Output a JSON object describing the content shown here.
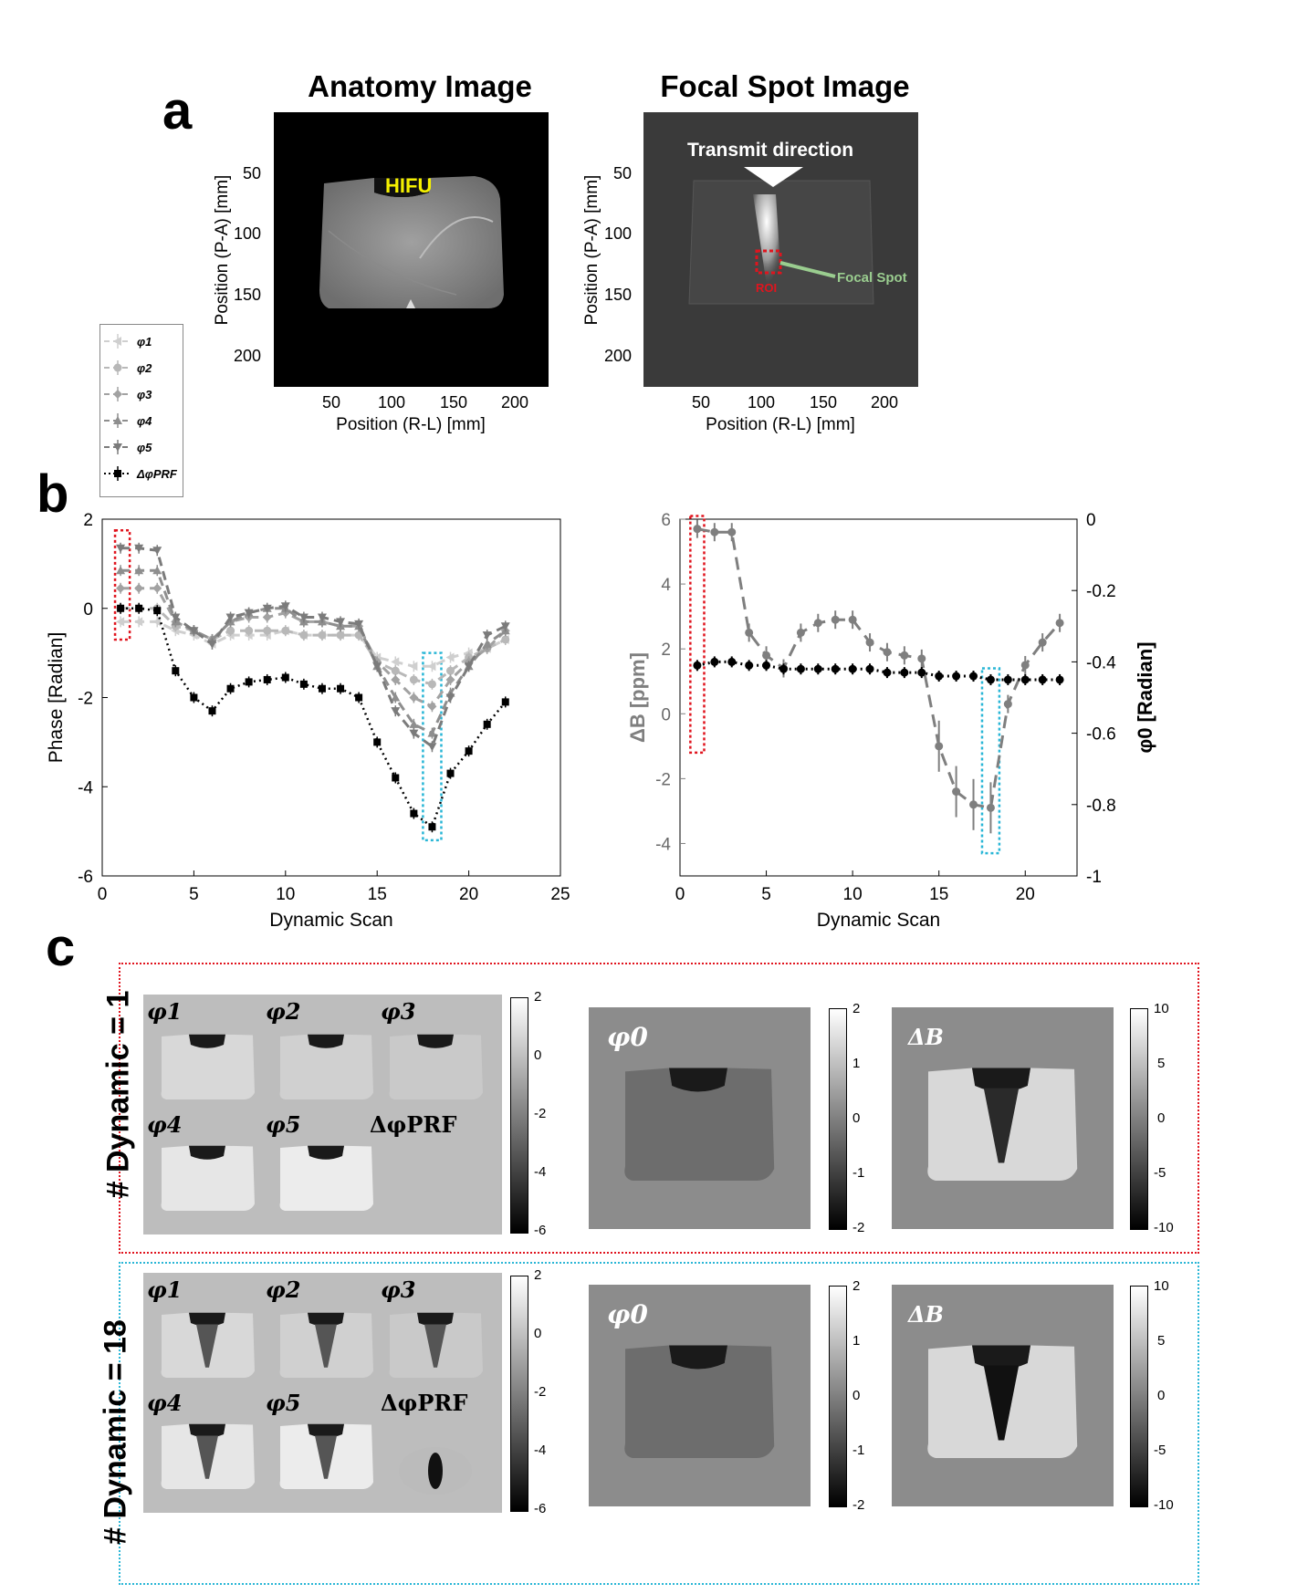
{
  "panels": {
    "a": "a",
    "b": "b",
    "c": "c"
  },
  "panel_a": {
    "left": {
      "title": "Anatomy Image",
      "overlay_label": "HIFU",
      "xlabel": "Position (R-L) [mm]",
      "ylabel": "Position (P-A) [mm]",
      "xticks": [
        "50",
        "100",
        "150",
        "200"
      ],
      "yticks": [
        "50",
        "100",
        "150",
        "200"
      ]
    },
    "right": {
      "title": "Focal Spot Image",
      "overlay_label": "Transmit direction",
      "roi_label": "ROI",
      "focal_label": "Focal Spot",
      "xlabel": "Position (R-L) [mm]",
      "ylabel": "Position (P-A) [mm]",
      "xticks": [
        "50",
        "100",
        "150",
        "200"
      ],
      "yticks": [
        "50",
        "100",
        "150",
        "200"
      ]
    },
    "colors": {
      "roi": "#e0141e",
      "focal": "#9acd8f",
      "hifu": "#f5f000"
    }
  },
  "legend": {
    "entries": [
      "φ1",
      "φ2",
      "φ3",
      "φ4",
      "φ5",
      "ΔφPRF"
    ]
  },
  "chart_data": [
    {
      "type": "line",
      "xlabel": "Dynamic Scan",
      "ylabel": "Phase [Radian]",
      "xlim": [
        0,
        25
      ],
      "ylim": [
        -6,
        2
      ],
      "xticks": [
        "0",
        "5",
        "10",
        "15",
        "20",
        "25"
      ],
      "yticks": [
        "2",
        "0",
        "-2",
        "-4",
        "-6"
      ],
      "x": [
        1,
        2,
        3,
        4,
        5,
        6,
        7,
        8,
        9,
        10,
        11,
        12,
        13,
        14,
        15,
        16,
        17,
        18,
        19,
        20,
        21,
        22
      ],
      "series": [
        {
          "name": "φ1",
          "color": "#cfcfcf",
          "values": [
            -0.3,
            -0.3,
            -0.3,
            -0.5,
            -0.6,
            -0.8,
            -0.6,
            -0.6,
            -0.6,
            -0.5,
            -0.6,
            -0.6,
            -0.6,
            -0.6,
            -1.1,
            -1.2,
            -1.3,
            -1.3,
            -1.1,
            -1.0,
            -0.9,
            -0.7
          ]
        },
        {
          "name": "φ2",
          "color": "#b8b8b8",
          "values": [
            0.0,
            0.0,
            0.0,
            -0.4,
            -0.5,
            -0.7,
            -0.5,
            -0.5,
            -0.5,
            -0.5,
            -0.6,
            -0.6,
            -0.6,
            -0.6,
            -1.2,
            -1.4,
            -1.6,
            -1.7,
            -1.4,
            -1.1,
            -0.9,
            -0.7
          ]
        },
        {
          "name": "φ3",
          "color": "#a2a2a2",
          "values": [
            0.45,
            0.45,
            0.45,
            -0.3,
            -0.5,
            -0.7,
            -0.3,
            -0.2,
            -0.2,
            -0.1,
            -0.3,
            -0.3,
            -0.4,
            -0.4,
            -1.2,
            -1.6,
            -2.0,
            -2.2,
            -1.6,
            -1.2,
            -0.9,
            -0.5
          ]
        },
        {
          "name": "φ4",
          "color": "#8e8e8e",
          "values": [
            0.85,
            0.85,
            0.85,
            -0.3,
            -0.5,
            -0.7,
            -0.3,
            -0.1,
            0.0,
            0.0,
            -0.3,
            -0.3,
            -0.4,
            -0.4,
            -1.3,
            -2.0,
            -2.6,
            -2.8,
            -1.9,
            -1.3,
            -0.8,
            -0.5
          ]
        },
        {
          "name": "φ5",
          "color": "#7b7b7b",
          "values": [
            1.35,
            1.35,
            1.3,
            -0.2,
            -0.5,
            -0.8,
            -0.2,
            -0.1,
            0.0,
            0.05,
            -0.2,
            -0.2,
            -0.3,
            -0.35,
            -1.3,
            -2.3,
            -2.8,
            -3.1,
            -2.0,
            -1.3,
            -0.6,
            -0.4
          ]
        },
        {
          "name": "ΔφPRF",
          "color": "#000000",
          "values": [
            0.0,
            0.0,
            -0.05,
            -1.4,
            -2.0,
            -2.3,
            -1.8,
            -1.65,
            -1.6,
            -1.55,
            -1.7,
            -1.8,
            -1.8,
            -2.0,
            -3.0,
            -3.8,
            -4.6,
            -4.9,
            -3.7,
            -3.2,
            -2.6,
            -2.1
          ]
        }
      ],
      "highlights": [
        {
          "x_range": [
            0.7,
            1.5
          ],
          "y_range": [
            -0.7,
            1.75
          ],
          "color": "#e0141e"
        },
        {
          "x_range": [
            17.5,
            18.5
          ],
          "y_range": [
            -5.2,
            -1.0
          ],
          "color": "#29b6d6"
        }
      ]
    },
    {
      "type": "line",
      "xlabel": "Dynamic Scan",
      "ylabel_left": "ΔB [ppm]",
      "ylabel_right": "φ0 [Radian]",
      "xlim": [
        0,
        23
      ],
      "ylim_left": [
        -5,
        6
      ],
      "ylim_right": [
        -1,
        0
      ],
      "xticks": [
        "0",
        "5",
        "10",
        "15",
        "20"
      ],
      "yticks_left": [
        "6",
        "4",
        "2",
        "0",
        "-2",
        "-4"
      ],
      "yticks_right": [
        "0",
        "-0.2",
        "-0.4",
        "-0.6",
        "-0.8",
        "-1"
      ],
      "x": [
        1,
        2,
        3,
        4,
        5,
        6,
        7,
        8,
        9,
        10,
        11,
        12,
        13,
        14,
        15,
        16,
        17,
        18,
        19,
        20,
        21,
        22
      ],
      "series": [
        {
          "name": "ΔB",
          "axis": "left",
          "color": "#7f7f7f",
          "values": [
            5.7,
            5.6,
            5.6,
            2.5,
            1.8,
            1.4,
            2.5,
            2.8,
            2.9,
            2.9,
            2.2,
            1.9,
            1.8,
            1.7,
            -1.0,
            -2.4,
            -2.8,
            -2.9,
            0.3,
            1.5,
            2.2,
            2.8
          ]
        },
        {
          "name": "φ0",
          "axis": "right",
          "color": "#000000",
          "values": [
            -0.41,
            -0.4,
            -0.4,
            -0.41,
            -0.41,
            -0.42,
            -0.42,
            -0.42,
            -0.42,
            -0.42,
            -0.42,
            -0.43,
            -0.43,
            -0.43,
            -0.44,
            -0.44,
            -0.44,
            -0.45,
            -0.45,
            -0.45,
            -0.45,
            -0.45
          ]
        }
      ],
      "highlights": [
        {
          "x_range": [
            0.6,
            1.4
          ],
          "y_range": [
            -1.2,
            6.1
          ],
          "color": "#e0141e"
        },
        {
          "x_range": [
            17.5,
            18.5
          ],
          "y_range": [
            -4.3,
            1.4
          ],
          "color": "#29b6d6"
        }
      ]
    }
  ],
  "panel_c": {
    "rows": [
      {
        "label": "# Dynamic = 1",
        "border_color": "#e0141e",
        "grid_labels": [
          "φ1",
          "φ2",
          "φ3",
          "φ4",
          "φ5",
          "ΔφPRF"
        ],
        "cbar1": [
          "2",
          "0",
          "-2",
          "-4",
          "-6"
        ],
        "map2_label": "φ0",
        "cbar2": [
          "2",
          "1",
          "0",
          "-1",
          "-2"
        ],
        "map3_label": "ΔB",
        "cbar3": [
          "10",
          "5",
          "0",
          "-5",
          "-10"
        ]
      },
      {
        "label": "# Dynamic = 18",
        "border_color": "#29b6d6",
        "grid_labels": [
          "φ1",
          "φ2",
          "φ3",
          "φ4",
          "φ5",
          "ΔφPRF"
        ],
        "cbar1": [
          "2",
          "0",
          "-2",
          "-4",
          "-6"
        ],
        "map2_label": "φ0",
        "cbar2": [
          "2",
          "1",
          "0",
          "-1",
          "-2"
        ],
        "map3_label": "ΔB",
        "cbar3": [
          "10",
          "5",
          "0",
          "-5",
          "-10"
        ]
      }
    ]
  }
}
